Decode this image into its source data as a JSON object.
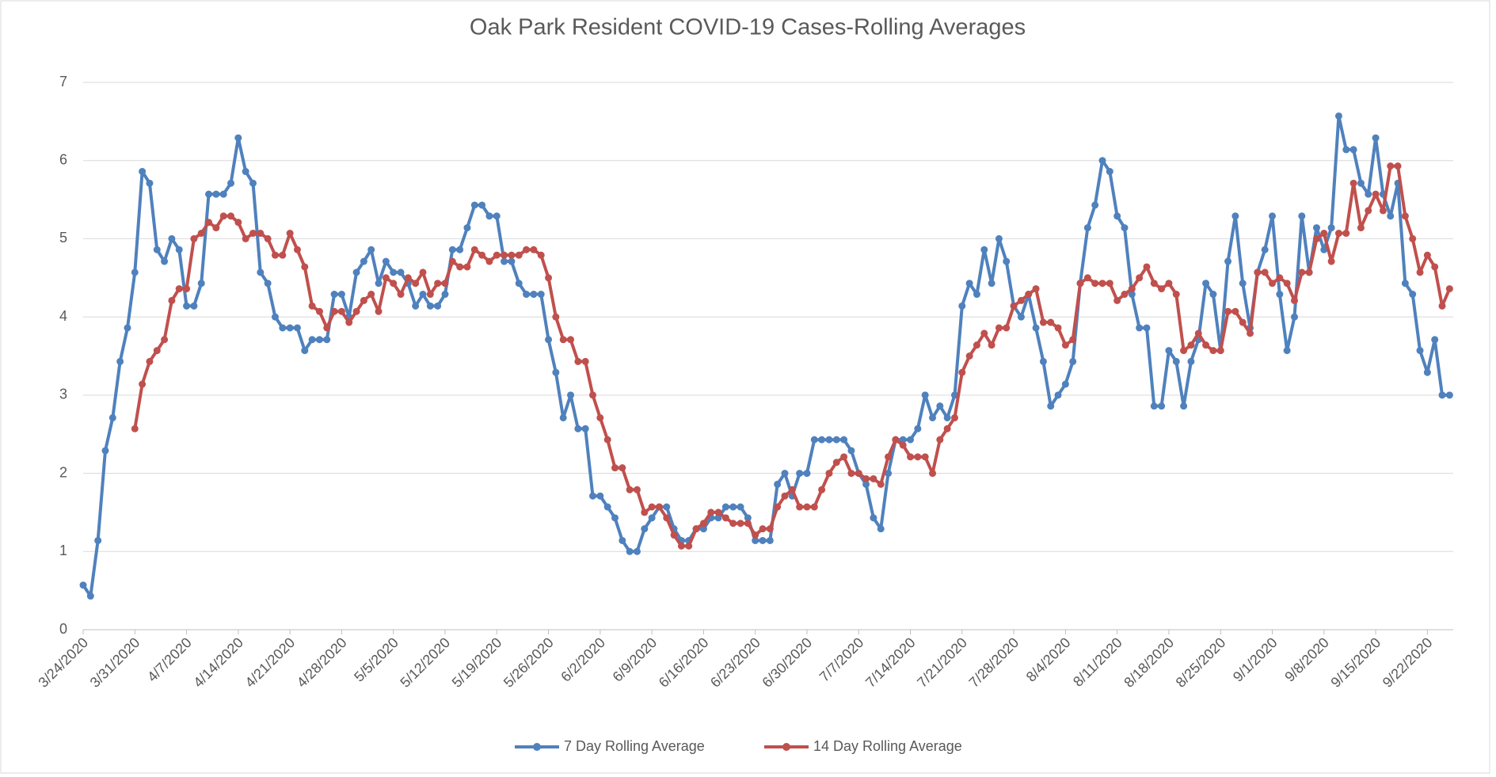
{
  "chart_data": {
    "type": "line",
    "title": "Oak Park Resident COVID-19 Cases-Rolling Averages",
    "categories": [
      "3/24/2020",
      null,
      null,
      null,
      null,
      null,
      null,
      "3/31/2020",
      null,
      null,
      null,
      null,
      null,
      null,
      "4/7/2020",
      null,
      null,
      null,
      null,
      null,
      null,
      "4/14/2020",
      null,
      null,
      null,
      null,
      null,
      null,
      "4/21/2020",
      null,
      null,
      null,
      null,
      null,
      null,
      "4/28/2020",
      null,
      null,
      null,
      null,
      null,
      null,
      "5/5/2020",
      null,
      null,
      null,
      null,
      null,
      null,
      "5/12/2020",
      null,
      null,
      null,
      null,
      null,
      null,
      "5/19/2020",
      null,
      null,
      null,
      null,
      null,
      null,
      "5/26/2020",
      null,
      null,
      null,
      null,
      null,
      null,
      "6/2/2020",
      null,
      null,
      null,
      null,
      null,
      null,
      "6/9/2020",
      null,
      null,
      null,
      null,
      null,
      null,
      "6/16/2020",
      null,
      null,
      null,
      null,
      null,
      null,
      "6/23/2020",
      null,
      null,
      null,
      null,
      null,
      null,
      "6/30/2020",
      null,
      null,
      null,
      null,
      null,
      null,
      "7/7/2020",
      null,
      null,
      null,
      null,
      null,
      null,
      "7/14/2020",
      null,
      null,
      null,
      null,
      null,
      null,
      "7/21/2020",
      null,
      null,
      null,
      null,
      null,
      null,
      "7/28/2020",
      null,
      null,
      null,
      null,
      null,
      null,
      "8/4/2020",
      null,
      null,
      null,
      null,
      null,
      null,
      "8/11/2020",
      null,
      null,
      null,
      null,
      null,
      null,
      "8/18/2020",
      null,
      null,
      null,
      null,
      null,
      null,
      "8/25/2020",
      null,
      null,
      null,
      null,
      null,
      null,
      "9/1/2020",
      null,
      null,
      null,
      null,
      null,
      null,
      "9/8/2020",
      null,
      null,
      null,
      null,
      null,
      null,
      "9/15/2020",
      null,
      null,
      null,
      null,
      null,
      null,
      "9/22/2020",
      null,
      null,
      null
    ],
    "series": [
      {
        "name": "7 Day Rolling Average",
        "color": "#4f81bd",
        "values": [
          0.57,
          0.43,
          1.14,
          2.29,
          2.71,
          3.43,
          3.86,
          4.57,
          5.86,
          5.71,
          4.86,
          4.71,
          5.0,
          4.86,
          4.14,
          4.14,
          4.43,
          5.57,
          5.57,
          5.57,
          5.71,
          6.29,
          5.86,
          5.71,
          4.57,
          4.43,
          4.0,
          3.86,
          3.86,
          3.86,
          3.57,
          3.71,
          3.71,
          3.71,
          4.29,
          4.29,
          4.0,
          4.57,
          4.71,
          4.86,
          4.43,
          4.71,
          4.57,
          4.57,
          4.43,
          4.14,
          4.29,
          4.14,
          4.14,
          4.29,
          4.86,
          4.86,
          5.14,
          5.43,
          5.43,
          5.29,
          5.29,
          4.71,
          4.71,
          4.43,
          4.29,
          4.29,
          4.29,
          3.71,
          3.29,
          2.71,
          3.0,
          2.57,
          2.57,
          1.71,
          1.71,
          1.57,
          1.43,
          1.14,
          1.0,
          1.0,
          1.29,
          1.43,
          1.57,
          1.57,
          1.29,
          1.14,
          1.14,
          1.29,
          1.29,
          1.43,
          1.43,
          1.57,
          1.57,
          1.57,
          1.43,
          1.14,
          1.14,
          1.14,
          1.86,
          2.0,
          1.71,
          2.0,
          2.0,
          2.43,
          2.43,
          2.43,
          2.43,
          2.43,
          2.29,
          2.0,
          1.86,
          1.43,
          1.29,
          2.0,
          2.43,
          2.43,
          2.43,
          2.57,
          3.0,
          2.71,
          2.86,
          2.71,
          3.0,
          4.14,
          4.43,
          4.29,
          4.86,
          4.43,
          5.0,
          4.71,
          4.14,
          4.0,
          4.29,
          3.86,
          3.43,
          2.86,
          3.0,
          3.14,
          3.43,
          4.43,
          5.14,
          5.43,
          6.0,
          5.86,
          5.29,
          5.14,
          4.29,
          3.86,
          3.86,
          2.86,
          2.86,
          3.57,
          3.43,
          2.86,
          3.43,
          3.71,
          4.43,
          4.29,
          3.57,
          4.71,
          5.29,
          4.43,
          3.86,
          4.57,
          4.86,
          5.29,
          4.29,
          3.57,
          4.0,
          5.29,
          4.57,
          5.14,
          4.86,
          5.14,
          6.57,
          6.14,
          6.14,
          5.71,
          5.57,
          6.29,
          5.57,
          5.29,
          5.71,
          4.43,
          4.29,
          3.57,
          3.29,
          3.71,
          3.0,
          3.0
        ]
      },
      {
        "name": "14 Day Rolling Average",
        "color": "#c0504d",
        "values": [
          null,
          null,
          null,
          null,
          null,
          null,
          null,
          2.57,
          3.14,
          3.43,
          3.57,
          3.71,
          4.21,
          4.36,
          4.36,
          5.0,
          5.07,
          5.21,
          5.14,
          5.29,
          5.29,
          5.21,
          5.0,
          5.07,
          5.07,
          5.0,
          4.79,
          4.79,
          5.07,
          4.86,
          4.64,
          4.14,
          4.07,
          3.86,
          4.07,
          4.07,
          3.93,
          4.07,
          4.21,
          4.29,
          4.07,
          4.5,
          4.43,
          4.29,
          4.5,
          4.43,
          4.57,
          4.29,
          4.43,
          4.43,
          4.71,
          4.64,
          4.64,
          4.86,
          4.79,
          4.71,
          4.79,
          4.79,
          4.79,
          4.79,
          4.86,
          4.86,
          4.79,
          4.5,
          4.0,
          3.71,
          3.71,
          3.43,
          3.43,
          3.0,
          2.71,
          2.43,
          2.07,
          2.07,
          1.79,
          1.79,
          1.5,
          1.57,
          1.57,
          1.43,
          1.21,
          1.07,
          1.07,
          1.29,
          1.36,
          1.5,
          1.5,
          1.43,
          1.36,
          1.36,
          1.36,
          1.21,
          1.29,
          1.29,
          1.57,
          1.71,
          1.79,
          1.57,
          1.57,
          1.57,
          1.79,
          2.0,
          2.14,
          2.21,
          2.0,
          2.0,
          1.93,
          1.93,
          1.86,
          2.21,
          2.43,
          2.36,
          2.21,
          2.21,
          2.21,
          2.0,
          2.43,
          2.57,
          2.71,
          3.29,
          3.5,
          3.64,
          3.79,
          3.64,
          3.86,
          3.86,
          4.14,
          4.21,
          4.29,
          4.36,
          3.93,
          3.93,
          3.86,
          3.64,
          3.71,
          4.43,
          4.5,
          4.43,
          4.43,
          4.43,
          4.21,
          4.29,
          4.36,
          4.5,
          4.64,
          4.43,
          4.36,
          4.43,
          4.29,
          3.57,
          3.64,
          3.79,
          3.64,
          3.57,
          3.57,
          4.07,
          4.07,
          3.93,
          3.79,
          4.57,
          4.57,
          4.43,
          4.5,
          4.43,
          4.21,
          4.57,
          4.57,
          5.0,
          5.07,
          4.71,
          5.07,
          5.07,
          5.71,
          5.14,
          5.36,
          5.57,
          5.36,
          5.93,
          5.93,
          5.29,
          5.0,
          4.57,
          4.79,
          4.64,
          4.14,
          4.36
        ]
      }
    ],
    "ylim": [
      0,
      7
    ],
    "yticks": [
      0,
      1,
      2,
      3,
      4,
      5,
      6,
      7
    ],
    "grid": true,
    "legend": "bottom"
  }
}
